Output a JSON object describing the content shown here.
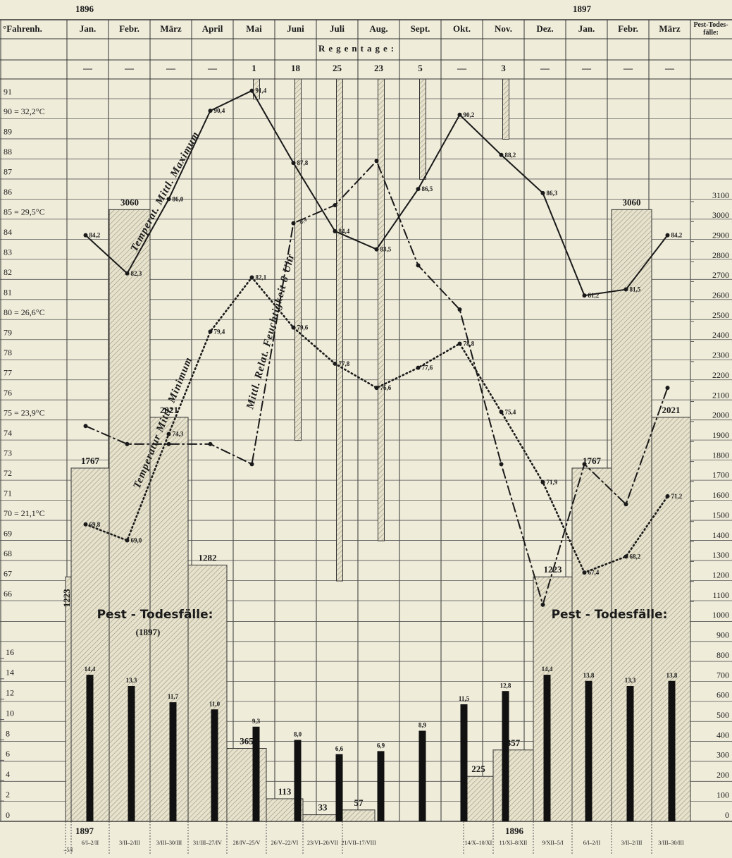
{
  "chart_data": {
    "type": "combo",
    "years_top": [
      "1896",
      "1897"
    ],
    "corner_label": "°Fahrenh.",
    "categories": [
      "Jan.",
      "Febr.",
      "März",
      "April",
      "Mai",
      "Juni",
      "Juli",
      "Aug.",
      "Sept.",
      "Okt.",
      "Nov.",
      "Dez.",
      "Jan.",
      "Febr.",
      "März"
    ],
    "deaths_header": "Pest-Todes-fälle:",
    "rain_title": "Regentage:",
    "ylim": [
      66,
      91
    ],
    "yticks": [
      91,
      {
        "value": 90,
        "label": "90 = 32,2°C"
      },
      89,
      88,
      87,
      86,
      {
        "value": 85,
        "label": "85 = 29,5°C"
      },
      84,
      83,
      82,
      81,
      {
        "value": 80,
        "label": "80 = 26,6°C"
      },
      79,
      78,
      77,
      76,
      {
        "value": 75,
        "label": "75 = 23,9°C"
      },
      74,
      73,
      72,
      71,
      {
        "value": 70,
        "label": "70 = 21,1°C"
      },
      69,
      68,
      67,
      66
    ],
    "y2lim": [
      0,
      3100
    ],
    "y2ticks": [
      0,
      100,
      200,
      300,
      400,
      500,
      600,
      700,
      800,
      900,
      1000,
      1100,
      1200,
      1300,
      1400,
      1500,
      1600,
      1700,
      1800,
      1900,
      2000,
      2100,
      2200,
      2300,
      2400,
      2500,
      2600,
      2700,
      2800,
      2900,
      3000,
      3100
    ],
    "y3lim": [
      0,
      16
    ],
    "y3ticks": [
      0,
      2,
      4,
      6,
      8,
      10,
      12,
      14,
      16
    ],
    "rain": {
      "values": [
        0,
        0,
        0,
        0,
        1,
        18,
        25,
        23,
        5,
        0,
        3,
        0,
        0,
        0,
        0
      ],
      "value_labels": [
        "—",
        "—",
        "—",
        "—",
        "1",
        "18",
        "25",
        "23",
        "5",
        "—",
        "3",
        "—",
        "—",
        "—",
        "—"
      ]
    },
    "series": [
      {
        "name": "Temperat. Mittl. Maximum",
        "type": "line",
        "style": "solid",
        "color": "#1a1a1a",
        "values": [
          84.2,
          82.3,
          86.0,
          90.4,
          91.4,
          87.8,
          84.4,
          83.5,
          86.5,
          90.2,
          88.2,
          86.3,
          81.2,
          81.5,
          84.2
        ],
        "value_labels": [
          "84,2",
          "82,3",
          "86,0",
          "90,4",
          "91,4",
          "87,8",
          "84,4",
          "83,5",
          "86,5",
          "90,2",
          "88,2",
          "86,3",
          "81,2",
          "81,5",
          "84,2"
        ]
      },
      {
        "name": "Temperatur Mittl. Minimum",
        "type": "line",
        "style": "dotted",
        "color": "#1a1a1a",
        "values": [
          69.8,
          69.0,
          74.3,
          79.4,
          82.1,
          79.6,
          77.8,
          76.6,
          77.6,
          78.8,
          75.4,
          71.9,
          67.4,
          68.2,
          71.2
        ],
        "value_labels": [
          "69,8",
          "69,0",
          "74,3",
          "79,4",
          "82,1",
          "79,6",
          "77,8",
          "76,6",
          "77,6",
          "78,8",
          "75,4",
          "71,9",
          "67,4",
          "68,2",
          "71,2"
        ]
      },
      {
        "name": "Mittl. Relat. Feuchtigkeit 8 Uhr",
        "unit_label": "⁰⁄₀",
        "type": "line",
        "style": "dashdot",
        "color": "#1a1a1a",
        "values": [
          74.7,
          73.8,
          73.8,
          73.8,
          72.8,
          84.8,
          85.7,
          87.9,
          82.7,
          80.5,
          72.8,
          65.8,
          72.8,
          70.8,
          76.6
        ]
      },
      {
        "type": "bar",
        "axis": "y3",
        "color": "#111111",
        "values": [
          14.4,
          13.3,
          11.7,
          11.0,
          9.3,
          8.0,
          6.6,
          6.9,
          8.9,
          11.5,
          12.8,
          14.4,
          13.8,
          13.3,
          13.8
        ],
        "value_labels": [
          "14,4",
          "13,3",
          "11,7",
          "11,0",
          "9,3",
          "8,0",
          "6,6",
          "6,9",
          "8,9",
          "11,5",
          "12,8",
          "14,4",
          "13,8",
          "13,3",
          "13,8"
        ]
      }
    ],
    "deaths": [
      {
        "name": "Pest - Todesfälle:",
        "note": "(1897)",
        "year": "1897",
        "axis": "y2",
        "categories": [
          "–5/I",
          "6/I–2/II",
          "3/II–2/III",
          "3/III–30/III",
          "31/III–27/IV",
          "28/IV–25/V",
          "26/V–22/VI",
          "23/VI–20/VII",
          "21/VII–17/VIII"
        ],
        "values": [
          1223,
          1767,
          3060,
          2021,
          1282,
          365,
          113,
          33,
          57
        ]
      },
      {
        "name": "Pest - Todesfälle:",
        "year": "1896",
        "axis": "y2",
        "categories": [
          "14/X–10/XI",
          "11/XI–8/XII",
          "9/XII–5/I",
          "6/I–2/II",
          "3/II–2/III",
          "3/III–30/III"
        ],
        "values": [
          225,
          357,
          1223,
          1767,
          3060,
          2021
        ]
      }
    ]
  }
}
